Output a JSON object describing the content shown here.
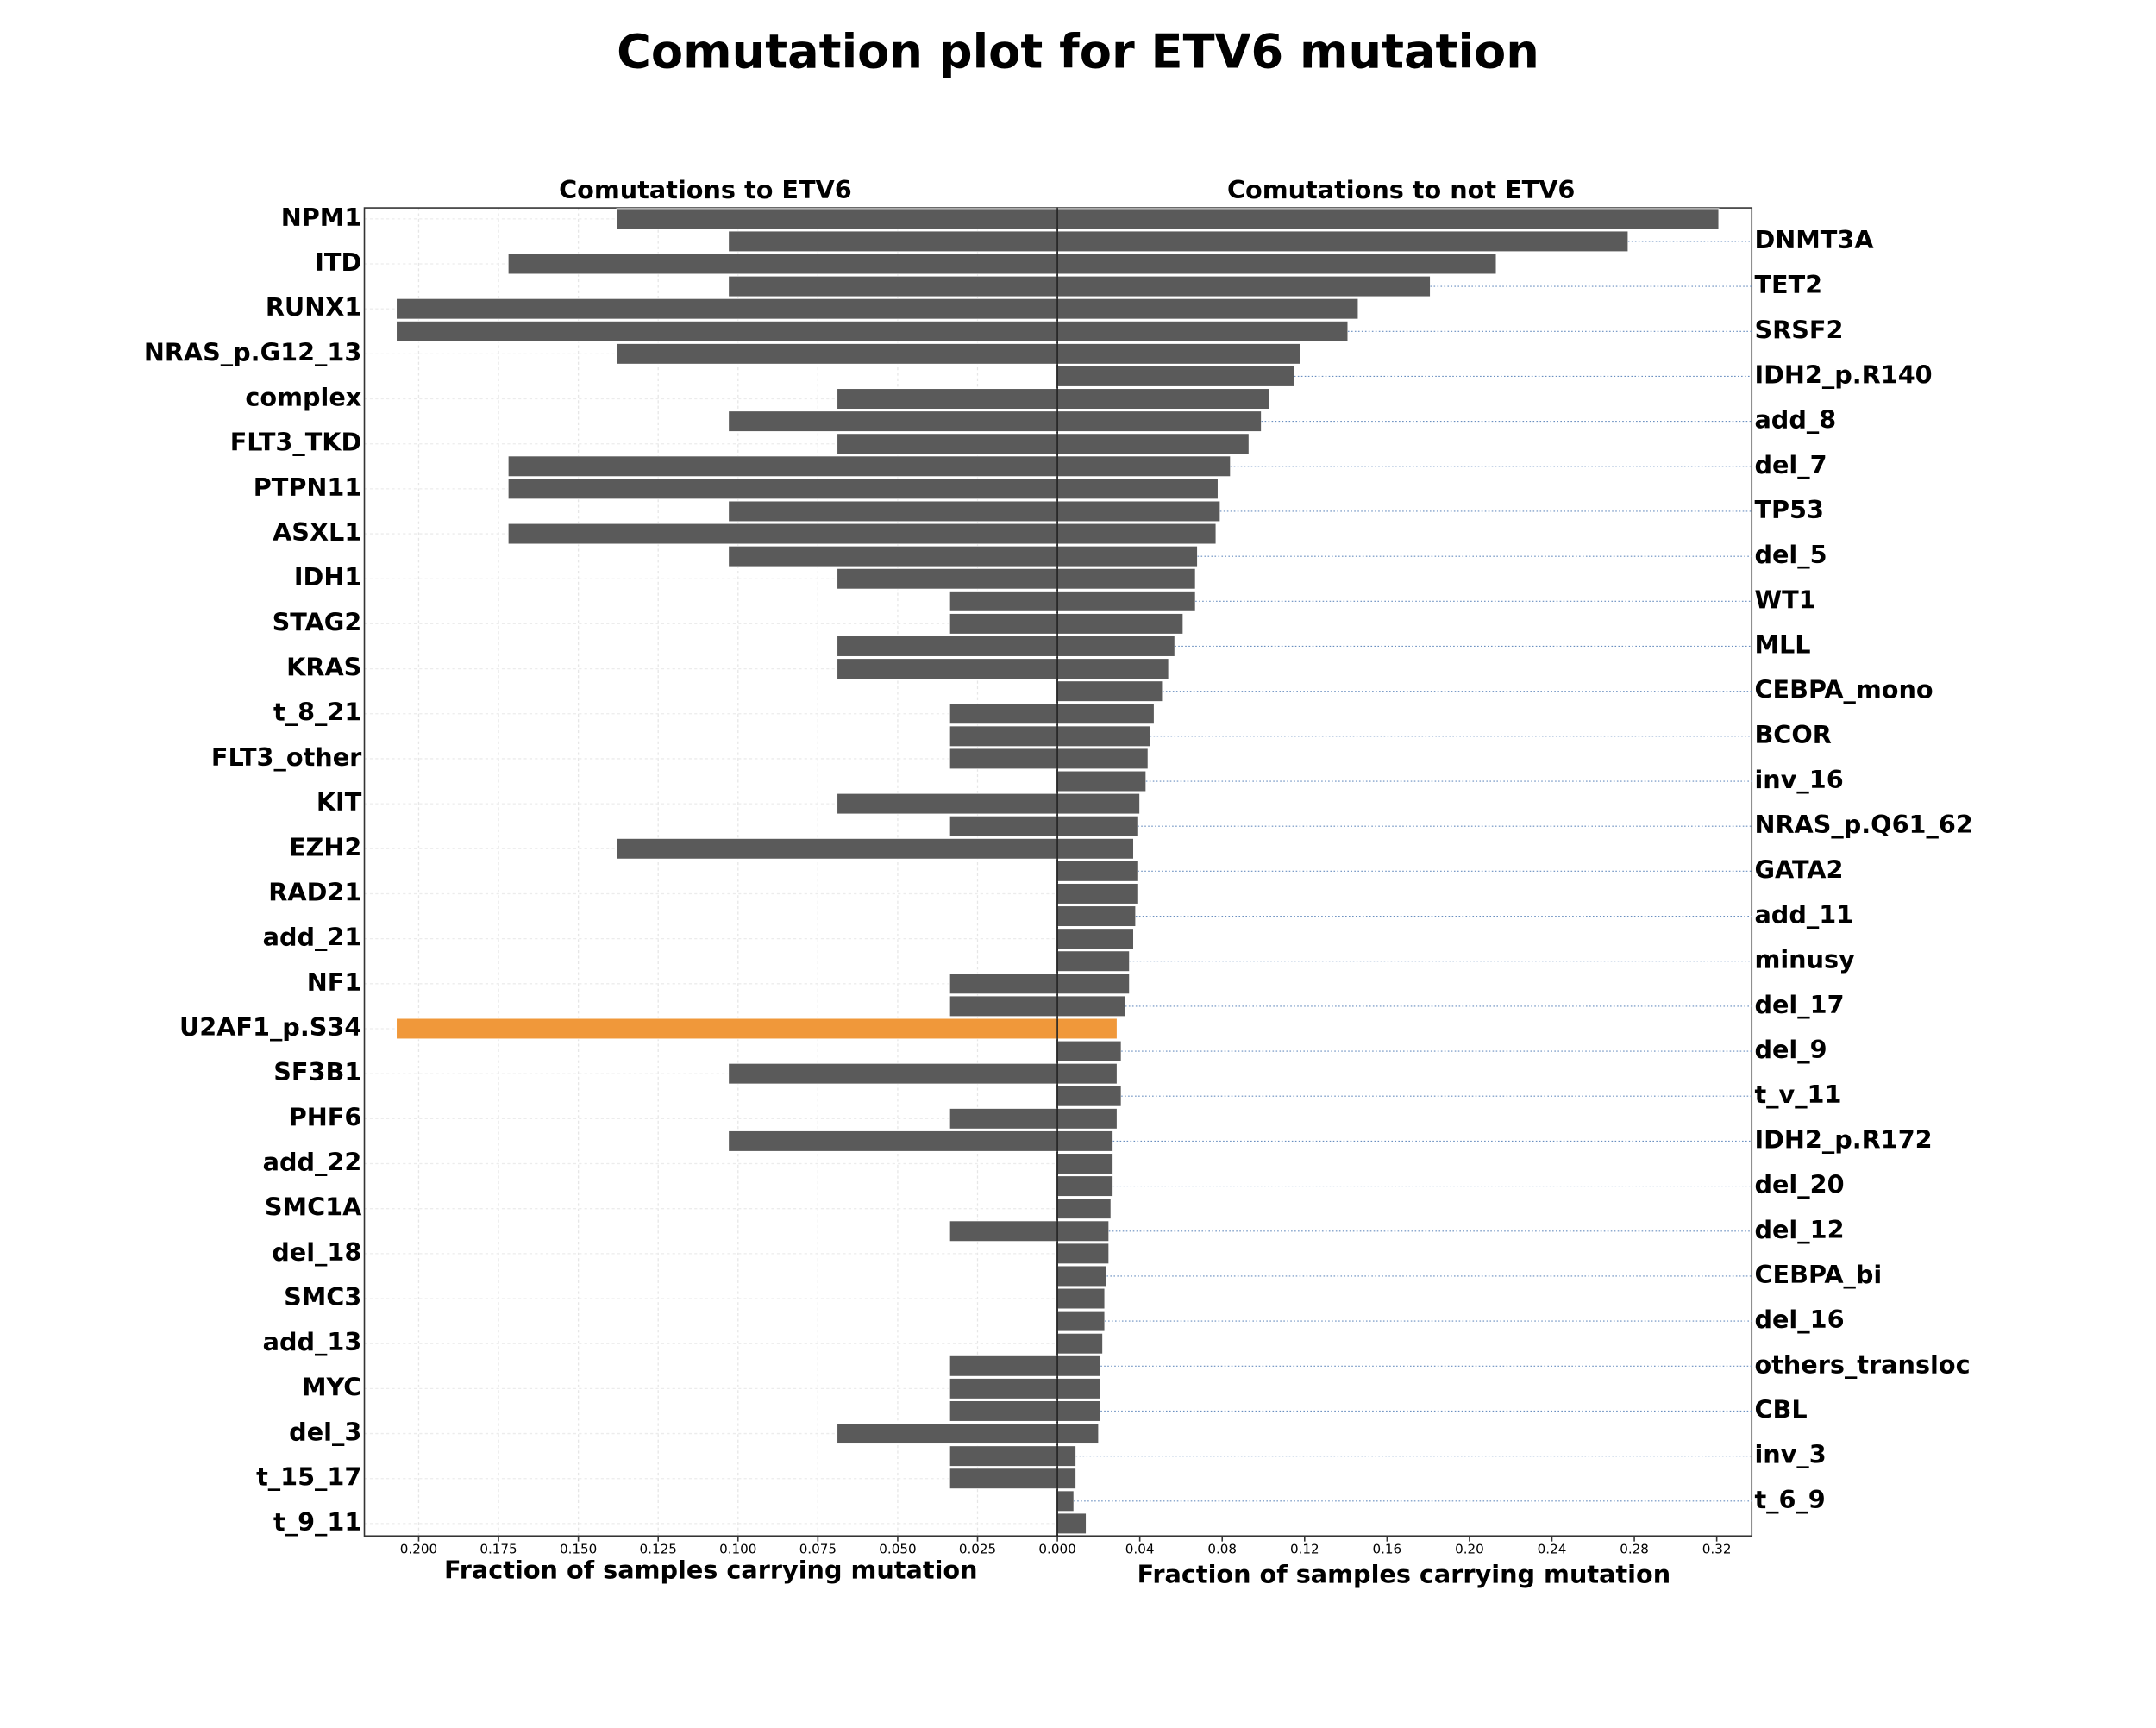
{
  "chart_data": {
    "type": "bar",
    "title": "Comutation plot for ETV6 mutation",
    "categories": [
      "NPM1",
      "DNMT3A",
      "ITD",
      "TET2",
      "RUNX1",
      "SRSF2",
      "NRAS_p.G12_13",
      "IDH2_p.R140",
      "complex",
      "add_8",
      "FLT3_TKD",
      "del_7",
      "PTPN11",
      "TP53",
      "ASXL1",
      "del_5",
      "IDH1",
      "WT1",
      "STAG2",
      "MLL",
      "KRAS",
      "CEBPA_mono",
      "t_8_21",
      "BCOR",
      "FLT3_other",
      "inv_16",
      "KIT",
      "NRAS_p.Q61_62",
      "EZH2",
      "GATA2",
      "RAD21",
      "add_11",
      "add_21",
      "minusy",
      "NF1",
      "del_17",
      "U2AF1_p.S34",
      "del_9",
      "SF3B1",
      "t_v_11",
      "PHF6",
      "IDH2_p.R172",
      "add_22",
      "del_20",
      "SMC1A",
      "del_12",
      "del_18",
      "CEBPA_bi",
      "SMC3",
      "del_16",
      "add_13",
      "others_transloc",
      "MYC",
      "CBL",
      "del_3",
      "inv_3",
      "t_15_17",
      "t_6_9",
      "t_9_11"
    ],
    "highlight": "U2AF1_p.S34",
    "highlight_color": "#f0983a",
    "grid": true,
    "series": [
      {
        "name": "Comutations to ETV6",
        "color": "#5a5a5a",
        "xlabel": "Fraction of samples carrying mutation",
        "xlim": [
          0.217,
          0
        ],
        "xticks": [
          {
            "value": 0.2,
            "label": "0.200"
          },
          {
            "value": 0.175,
            "label": "0.175"
          },
          {
            "value": 0.15,
            "label": "0.150"
          },
          {
            "value": 0.125,
            "label": "0.125"
          },
          {
            "value": 0.1,
            "label": "0.100"
          },
          {
            "value": 0.075,
            "label": "0.075"
          },
          {
            "value": 0.05,
            "label": "0.050"
          },
          {
            "value": 0.025,
            "label": "0.025"
          },
          {
            "value": 0,
            "label": "0.000"
          }
        ],
        "values": [
          0.138,
          0.103,
          0.172,
          0.103,
          0.207,
          0.207,
          0.138,
          0,
          0.069,
          0.103,
          0.069,
          0.172,
          0.172,
          0.103,
          0.172,
          0.103,
          0.069,
          0.034,
          0.034,
          0.069,
          0.069,
          0,
          0.034,
          0.034,
          0.034,
          0,
          0.069,
          0.034,
          0.138,
          0,
          0,
          0,
          0,
          0,
          0.034,
          0.034,
          0.207,
          0,
          0.103,
          0,
          0.034,
          0.103,
          0,
          0,
          0,
          0.034,
          0,
          0,
          0,
          0,
          0,
          0.034,
          0.034,
          0.034,
          0.069,
          0.034,
          0.034,
          0,
          0
        ]
      },
      {
        "name": "Comutations to not ETV6",
        "color": "#5a5a5a",
        "xlabel": "Fraction of samples carrying mutation",
        "xlim": [
          0,
          0.337
        ],
        "xticks": [
          0.04,
          0.08,
          0.12,
          0.16,
          {
            "value": 0.2,
            "label": "0.20"
          },
          0.24,
          0.28,
          0.32
        ],
        "values": [
          0.321,
          0.277,
          0.213,
          0.181,
          0.146,
          0.141,
          0.118,
          0.115,
          0.103,
          0.099,
          0.093,
          0.084,
          0.078,
          0.079,
          0.077,
          0.068,
          0.067,
          0.067,
          0.061,
          0.057,
          0.054,
          0.051,
          0.047,
          0.045,
          0.044,
          0.043,
          0.04,
          0.039,
          0.037,
          0.039,
          0.039,
          0.038,
          0.037,
          0.035,
          0.035,
          0.033,
          0.029,
          0.031,
          0.029,
          0.031,
          0.029,
          0.027,
          0.027,
          0.027,
          0.026,
          0.025,
          0.025,
          0.024,
          0.023,
          0.023,
          0.022,
          0.021,
          0.021,
          0.021,
          0.02,
          0.009,
          0.009,
          0.008,
          0.014
        ]
      }
    ]
  }
}
